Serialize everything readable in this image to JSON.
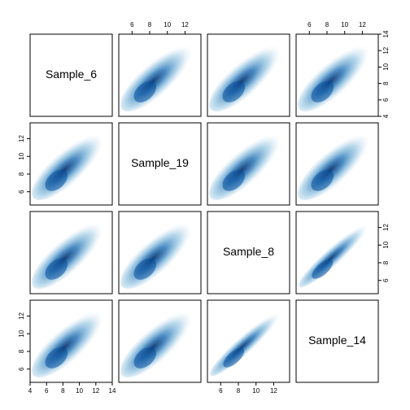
{
  "chart_data": {
    "type": "pairs",
    "color": "#08519c",
    "variables": [
      {
        "name": "Sample_6",
        "lim": [
          4,
          14
        ],
        "ticks": [
          4,
          6,
          8,
          10,
          12,
          14
        ]
      },
      {
        "name": "Sample_19",
        "lim": [
          4.5,
          13.8
        ],
        "ticks": [
          6,
          8,
          10,
          12
        ]
      },
      {
        "name": "Sample_8",
        "lim": [
          4.5,
          13.8
        ],
        "ticks": [
          6,
          8,
          10,
          12
        ]
      },
      {
        "name": "Sample_14",
        "lim": [
          4.5,
          13.8
        ],
        "ticks": [
          6,
          8,
          10,
          12
        ]
      }
    ]
  }
}
